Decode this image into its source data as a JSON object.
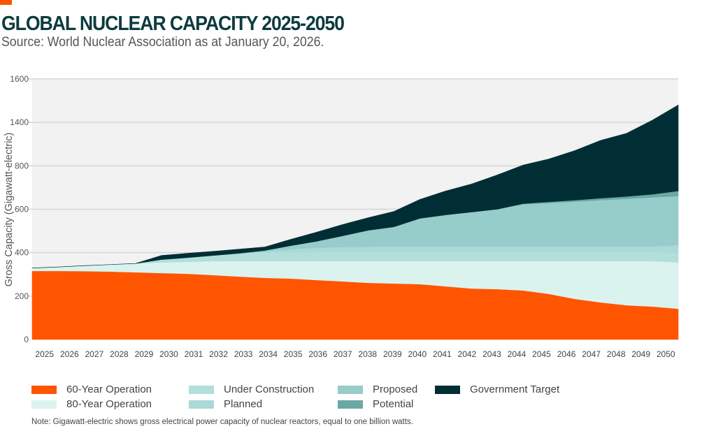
{
  "title": "GLOBAL NUCLEAR CAPACITY 2025-2050",
  "subtitle": "Source: World Nuclear Association as at January 20, 2026.",
  "note": "Note: Gigawatt-electric shows gross electrical power capacity of nuclear reactors, equal to one billion watts.",
  "colors": {
    "accent": "#ff5500",
    "title": "#0d3b3f",
    "plot_background": "#f2f2f2",
    "grid": "#d6d6d6"
  },
  "chart_data": {
    "type": "area",
    "stacked": true,
    "title": "GLOBAL NUCLEAR CAPACITY 2025-2050",
    "xlabel": "",
    "ylabel": "Gross Capacity (Gigawatt-electric)",
    "x": [
      2025,
      2026,
      2027,
      2028,
      2029,
      2030,
      2031,
      2032,
      2033,
      2034,
      2035,
      2036,
      2037,
      2038,
      2039,
      2040,
      2041,
      2042,
      2043,
      2044,
      2045,
      2046,
      2047,
      2048,
      2049,
      2050
    ],
    "yticks": [
      0,
      200,
      400,
      600,
      800,
      1400,
      1600
    ],
    "ylim": [
      0,
      1600
    ],
    "grid": true,
    "legend_position": "bottom",
    "series": [
      {
        "name": "60-Year Operation",
        "color": "#ff5500",
        "values": [
          316,
          316,
          315,
          313,
          310,
          306,
          303,
          297,
          290,
          284,
          281,
          274,
          268,
          261,
          258,
          255,
          245,
          235,
          232,
          226,
          210,
          187,
          171,
          158,
          152,
          142
        ]
      },
      {
        "name": "80-Year Operation",
        "color": "#dbf3ef",
        "values": [
          13,
          18,
          25,
          32,
          40,
          49,
          55,
          64,
          71,
          77,
          80,
          87,
          93,
          100,
          103,
          106,
          116,
          126,
          129,
          135,
          151,
          174,
          190,
          203,
          209,
          213
        ]
      },
      {
        "name": "Under Construction",
        "color": "#b2dedb",
        "values": [
          0,
          0,
          0,
          0,
          0,
          13,
          19,
          26,
          36,
          39,
          41,
          41,
          41,
          41,
          41,
          41,
          41,
          41,
          41,
          41,
          41,
          41,
          41,
          41,
          41,
          45
        ]
      },
      {
        "name": "Planned",
        "color": "#acd8d6",
        "values": [
          0,
          0,
          0,
          0,
          0,
          0,
          0,
          0,
          0,
          6,
          14,
          21,
          24,
          26,
          27,
          27,
          27,
          27,
          27,
          27,
          27,
          27,
          27,
          27,
          27,
          35
        ]
      },
      {
        "name": "Proposed",
        "color": "#96ccc9",
        "values": [
          0,
          0,
          0,
          0,
          0,
          0,
          0,
          0,
          0,
          4,
          16,
          29,
          51,
          75,
          90,
          129,
          145,
          158,
          171,
          194,
          200,
          206,
          213,
          219,
          226,
          226
        ]
      },
      {
        "name": "Potential",
        "color": "#6aa8a4",
        "values": [
          0,
          0,
          0,
          0,
          0,
          0,
          0,
          0,
          0,
          0,
          0,
          0,
          0,
          0,
          0,
          0,
          0,
          0,
          0,
          3,
          5,
          7,
          9,
          11,
          14,
          23
        ]
      },
      {
        "name": "Government Target",
        "color": "#012e35",
        "values": [
          0,
          0,
          0,
          0,
          0,
          19,
          20,
          19,
          19,
          16,
          29,
          42,
          52,
          58,
          71,
          87,
          110,
          129,
          158,
          184,
          261,
          368,
          501,
          589,
          741,
          796
        ]
      }
    ]
  },
  "legend": {
    "items": [
      {
        "label": "60-Year Operation",
        "color": "#ff5500"
      },
      {
        "label": "80-Year Operation",
        "color": "#dbf3ef"
      },
      {
        "label": "Under Construction",
        "color": "#b2dedb"
      },
      {
        "label": "Planned",
        "color": "#acd8d6"
      },
      {
        "label": "Proposed",
        "color": "#96ccc9"
      },
      {
        "label": "Potential",
        "color": "#6aa8a4"
      },
      {
        "label": "Government Target",
        "color": "#012e35"
      }
    ]
  }
}
